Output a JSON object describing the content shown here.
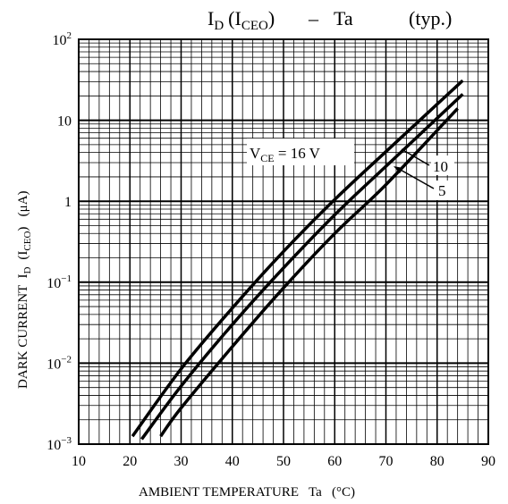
{
  "chart_data": {
    "type": "line",
    "title": {
      "main": "I",
      "main_sub": "D",
      "paren_main": "(I",
      "paren_sub": "CEO",
      "paren_close": ")",
      "dash": "–",
      "ta": "Ta",
      "typ": "(typ.)"
    },
    "xlabel": "AMBIENT TEMPERATURE   Ta   (°C)",
    "ylabel": {
      "prefix": "DARK CURRENT  I",
      "sub": "D",
      "paren": "(I",
      "paren_sub": "CEO",
      "unit": ")   (μA)"
    },
    "xlim": [
      10,
      90
    ],
    "ylim": [
      0.001,
      100
    ],
    "yscale": "log",
    "grid": true,
    "x_ticks": [
      "10",
      "20",
      "30",
      "40",
      "50",
      "60",
      "70",
      "80",
      "90"
    ],
    "y_ticks": [
      {
        "value": 0.001,
        "base": "10",
        "exp": "−3"
      },
      {
        "value": 0.01,
        "base": "10",
        "exp": "−2"
      },
      {
        "value": 0.1,
        "base": "10",
        "exp": "−1"
      },
      {
        "value": 1,
        "base": "1",
        "exp": ""
      },
      {
        "value": 10,
        "base": "10",
        "exp": ""
      },
      {
        "value": 100,
        "base": "10",
        "exp": "2"
      }
    ],
    "annotations": {
      "vce_main": "V",
      "vce_sub": "CE",
      "vce_rest": " = 16 V",
      "label_10": "10",
      "label_5": "5"
    },
    "series": [
      {
        "name": "16 V",
        "x": [
          20.5,
          30,
          40,
          50,
          60,
          70,
          85
        ],
        "y": [
          0.00125,
          0.0085,
          0.048,
          0.24,
          1.05,
          4.1,
          31
        ]
      },
      {
        "name": "10",
        "x": [
          22.3,
          30,
          40,
          50,
          60,
          70,
          85
        ],
        "y": [
          0.00115,
          0.0052,
          0.03,
          0.15,
          0.68,
          2.7,
          21
        ]
      },
      {
        "name": "5",
        "x": [
          26,
          30,
          40,
          50,
          60,
          70,
          84
        ],
        "y": [
          0.00125,
          0.0028,
          0.016,
          0.085,
          0.4,
          1.6,
          14
        ]
      }
    ]
  }
}
